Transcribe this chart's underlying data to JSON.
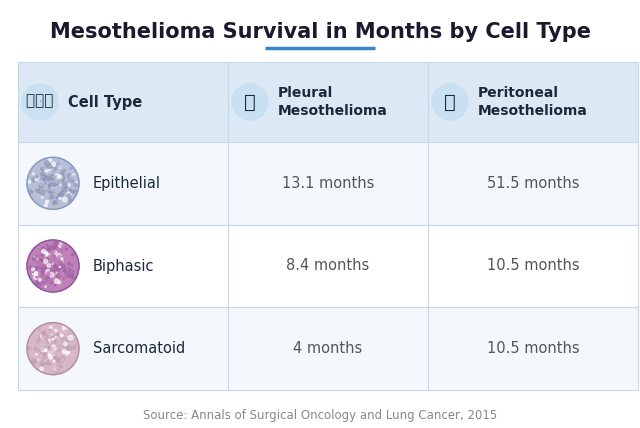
{
  "title": "Mesothelioma Survival in Months by Cell Type",
  "source": "Source: Annals of Surgical Oncology and Lung Cancer, 2015",
  "col_headers": [
    "Cell Type",
    "Pleural\nMesothelioma",
    "Peritoneal\nMesothelioma"
  ],
  "rows": [
    {
      "label": "Epithelial",
      "pleural": "13.1 months",
      "peritoneal": "51.5 months"
    },
    {
      "label": "Biphasic",
      "pleural": "8.4 months",
      "peritoneal": "10.5 months"
    },
    {
      "label": "Sarcomatoid",
      "pleural": "4 months",
      "peritoneal": "10.5 months"
    }
  ],
  "header_bg": "#dce9f5",
  "row_bg_alt": "#f4f8fc",
  "row_bg_white": "#ffffff",
  "border_color": "#c5d8ea",
  "title_color": "#1a1a2e",
  "header_text_color": "#1a2a3a",
  "data_text_color": "#555555",
  "label_text_color": "#1a2a3a",
  "title_underline_color": "#3a85c5",
  "source_color": "#888888",
  "background": "#ffffff",
  "icon_bg": "#c8e0f0",
  "icon_color": "#1a2a3a",
  "cell_colors": [
    [
      "#b8c8e8",
      "#9ab0d8",
      "#c8d8f0",
      "#d0c8e8"
    ],
    [
      "#c888b8",
      "#b870a8",
      "#d898c8",
      "#e0a8d0"
    ],
    [
      "#d8b8c8",
      "#c8a0b0",
      "#e0c8d0",
      "#ead0d8"
    ]
  ],
  "figsize": [
    6.4,
    4.28
  ],
  "dpi": 100
}
